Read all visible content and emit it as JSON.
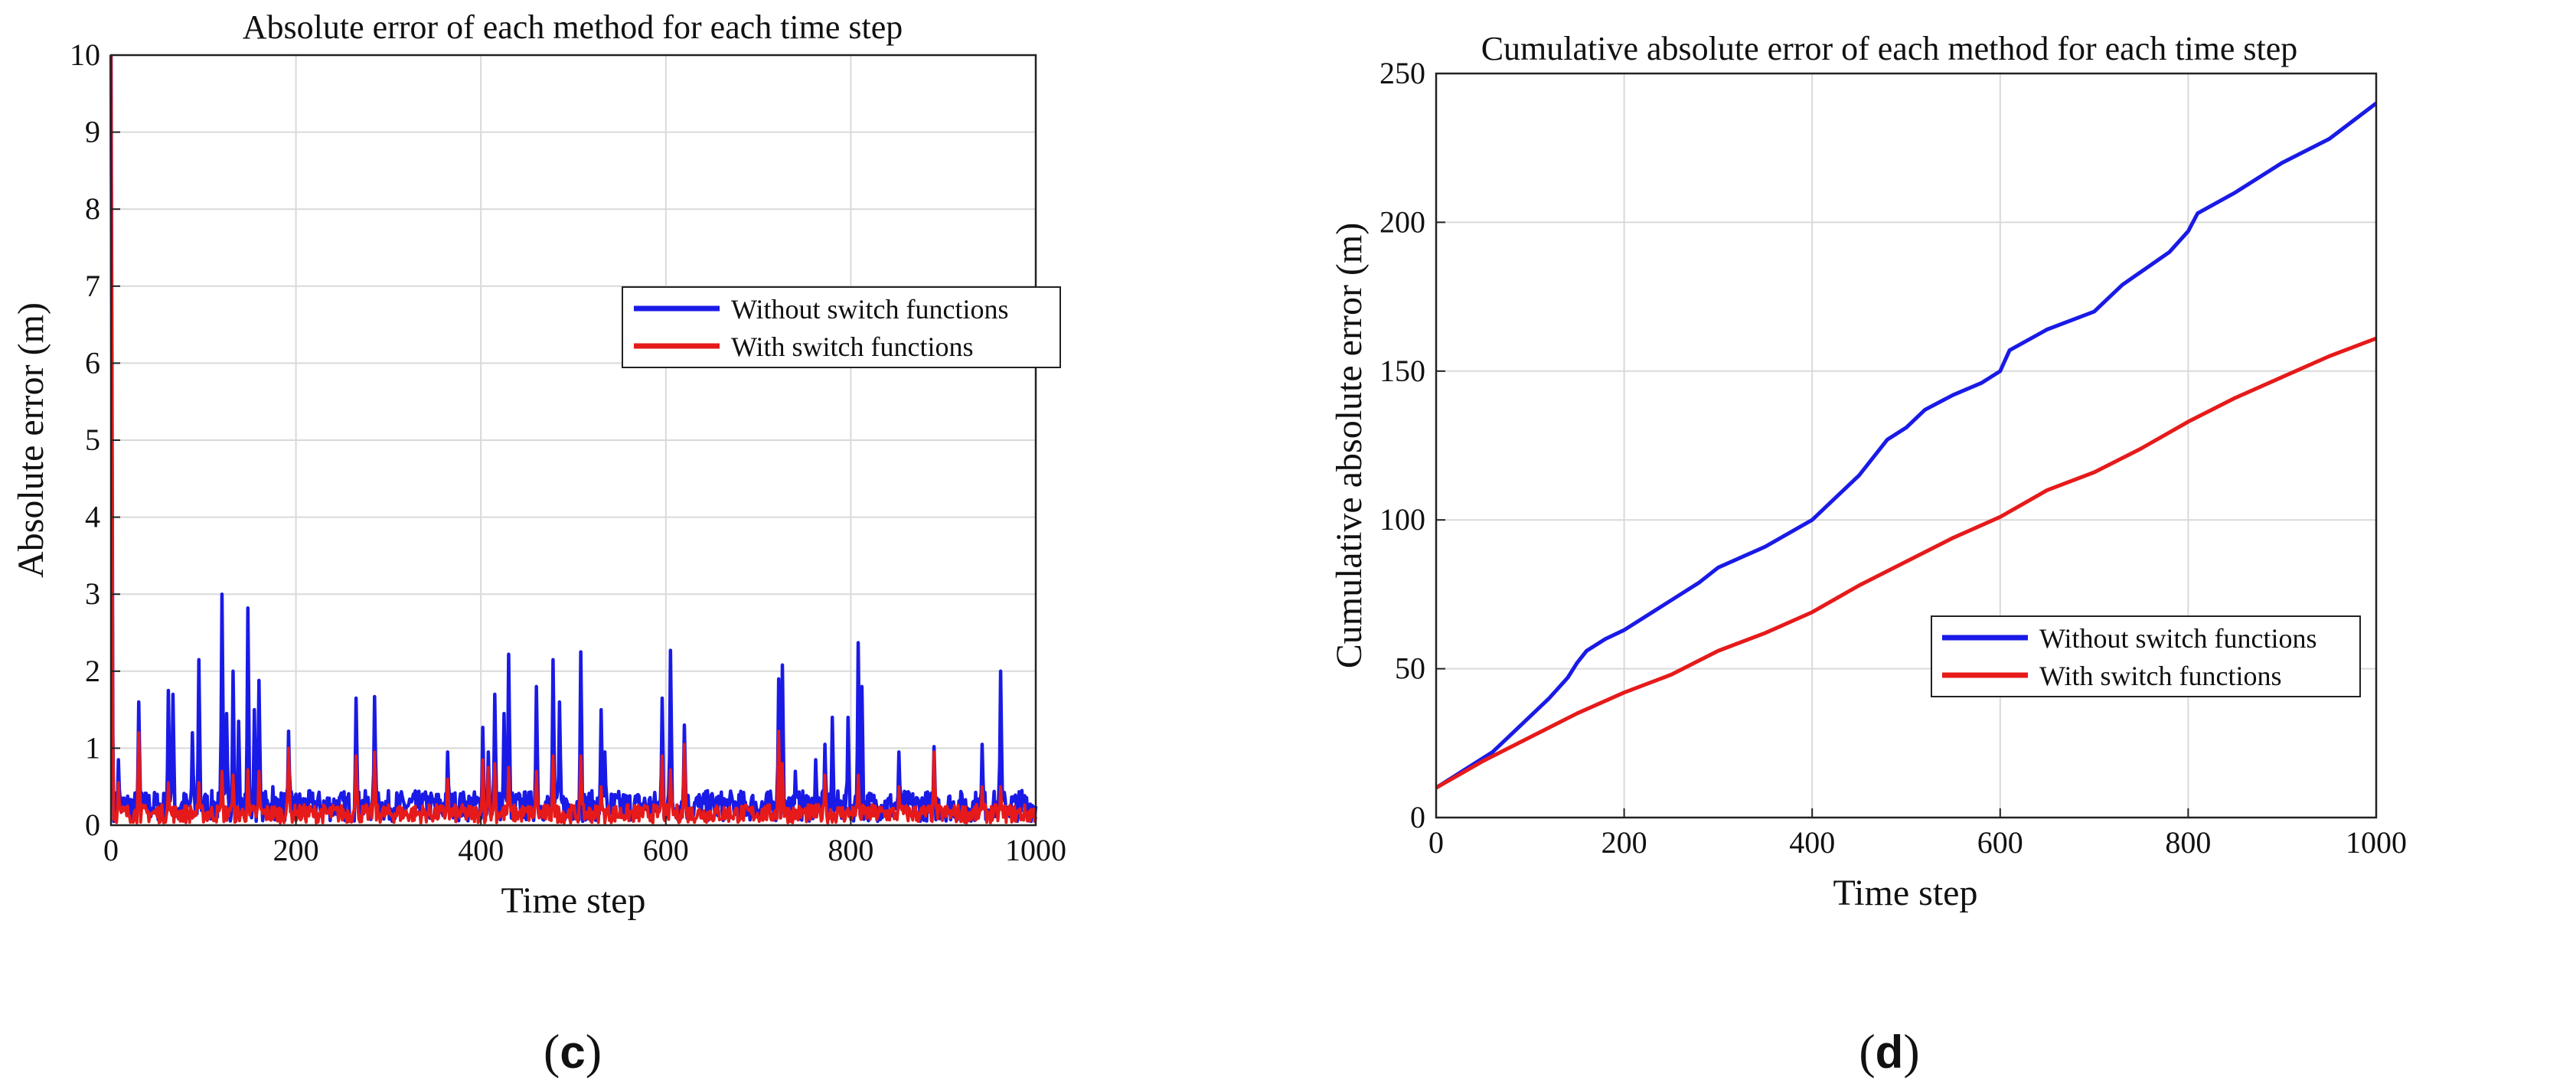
{
  "chart_data": [
    {
      "type": "line",
      "panel": "c",
      "caption_open": "(",
      "caption_letter": "c",
      "caption_close": ")",
      "title": "Absolute error of each method for each time step",
      "xlabel": "Time step",
      "ylabel": "Absolute error (m)",
      "xlim": [
        0,
        1000
      ],
      "ylim": [
        0,
        10
      ],
      "xticks": [
        "0",
        "200",
        "400",
        "600",
        "800",
        "1000"
      ],
      "yticks": [
        "0",
        "1",
        "2",
        "3",
        "4",
        "5",
        "6",
        "7",
        "8",
        "9",
        "10"
      ],
      "grid": true,
      "legend_position": "center-right",
      "series": [
        {
          "name": "Without switch functions",
          "color": "#1a1ae6",
          "baseline": 0.25,
          "start_value": 10,
          "spikes": [
            [
              8,
              0.85
            ],
            [
              30,
              1.6
            ],
            [
              62,
              1.75
            ],
            [
              67,
              1.7
            ],
            [
              88,
              1.2
            ],
            [
              95,
              2.15
            ],
            [
              120,
              3.0
            ],
            [
              125,
              1.45
            ],
            [
              132,
              2.0
            ],
            [
              138,
              1.35
            ],
            [
              148,
              2.82
            ],
            [
              155,
              1.5
            ],
            [
              160,
              1.88
            ],
            [
              175,
              0.5
            ],
            [
              192,
              1.22
            ],
            [
              265,
              1.65
            ],
            [
              285,
              1.67
            ],
            [
              364,
              0.95
            ],
            [
              402,
              1.27
            ],
            [
              408,
              0.95
            ],
            [
              415,
              1.7
            ],
            [
              425,
              1.45
            ],
            [
              430,
              2.22
            ],
            [
              460,
              1.8
            ],
            [
              478,
              2.15
            ],
            [
              485,
              1.6
            ],
            [
              508,
              2.25
            ],
            [
              530,
              1.5
            ],
            [
              534,
              0.95
            ],
            [
              596,
              1.65
            ],
            [
              605,
              2.27
            ],
            [
              620,
              1.3
            ],
            [
              722,
              1.9
            ],
            [
              726,
              2.08
            ],
            [
              740,
              0.7
            ],
            [
              762,
              0.85
            ],
            [
              772,
              1.05
            ],
            [
              780,
              1.4
            ],
            [
              797,
              1.4
            ],
            [
              808,
              2.37
            ],
            [
              812,
              1.8
            ],
            [
              852,
              0.95
            ],
            [
              890,
              1.02
            ],
            [
              942,
              1.05
            ],
            [
              962,
              2.0
            ],
            [
              985,
              0.45
            ]
          ]
        },
        {
          "name": "With switch functions",
          "color": "#e61a1a",
          "baseline": 0.15,
          "start_value": 10,
          "spikes": [
            [
              8,
              0.55
            ],
            [
              30,
              1.2
            ],
            [
              62,
              0.55
            ],
            [
              95,
              0.55
            ],
            [
              120,
              0.7
            ],
            [
              132,
              0.65
            ],
            [
              148,
              0.72
            ],
            [
              160,
              0.7
            ],
            [
              192,
              1.0
            ],
            [
              265,
              0.9
            ],
            [
              285,
              0.95
            ],
            [
              364,
              0.6
            ],
            [
              402,
              0.85
            ],
            [
              408,
              0.75
            ],
            [
              415,
              0.8
            ],
            [
              430,
              0.75
            ],
            [
              460,
              0.7
            ],
            [
              478,
              0.9
            ],
            [
              508,
              0.9
            ],
            [
              530,
              0.5
            ],
            [
              596,
              0.9
            ],
            [
              605,
              0.72
            ],
            [
              620,
              1.05
            ],
            [
              722,
              1.22
            ],
            [
              726,
              0.8
            ],
            [
              772,
              0.65
            ],
            [
              808,
              0.65
            ],
            [
              852,
              0.5
            ],
            [
              890,
              0.95
            ],
            [
              942,
              0.5
            ],
            [
              962,
              0.5
            ]
          ]
        }
      ]
    },
    {
      "type": "line",
      "panel": "d",
      "caption_open": "(",
      "caption_letter": "d",
      "caption_close": ")",
      "title": "Cumulative absolute error of each method for each time step",
      "xlabel": "Time step",
      "ylabel": "Cumulative absolute error (m)",
      "xlim": [
        0,
        1000
      ],
      "ylim": [
        0,
        250
      ],
      "xticks": [
        "0",
        "200",
        "400",
        "600",
        "800",
        "1000"
      ],
      "yticks": [
        "0",
        "50",
        "100",
        "150",
        "200",
        "250"
      ],
      "grid": true,
      "legend_position": "lower-right",
      "series": [
        {
          "name": "Without switch functions",
          "color": "#1a1ae6",
          "x": [
            0,
            20,
            40,
            60,
            80,
            100,
            120,
            140,
            150,
            160,
            180,
            200,
            250,
            280,
            300,
            350,
            400,
            430,
            450,
            480,
            500,
            520,
            550,
            580,
            600,
            610,
            650,
            700,
            720,
            730,
            780,
            800,
            810,
            850,
            900,
            950,
            1000
          ],
          "values": [
            10,
            14,
            18,
            22,
            28,
            34,
            40,
            47,
            52,
            56,
            60,
            63,
            73,
            79,
            84,
            91,
            100,
            109,
            115,
            127,
            131,
            137,
            142,
            146,
            150,
            157,
            164,
            170,
            176,
            179,
            190,
            197,
            203,
            210,
            220,
            228,
            240
          ]
        },
        {
          "name": "With switch functions",
          "color": "#e61a1a",
          "x": [
            0,
            50,
            100,
            150,
            200,
            250,
            300,
            350,
            400,
            450,
            500,
            550,
            600,
            650,
            700,
            750,
            800,
            850,
            900,
            950,
            1000
          ],
          "values": [
            10,
            19,
            27,
            35,
            42,
            48,
            56,
            62,
            69,
            78,
            86,
            94,
            101,
            110,
            116,
            124,
            133,
            141,
            148,
            155,
            161
          ]
        }
      ]
    }
  ]
}
